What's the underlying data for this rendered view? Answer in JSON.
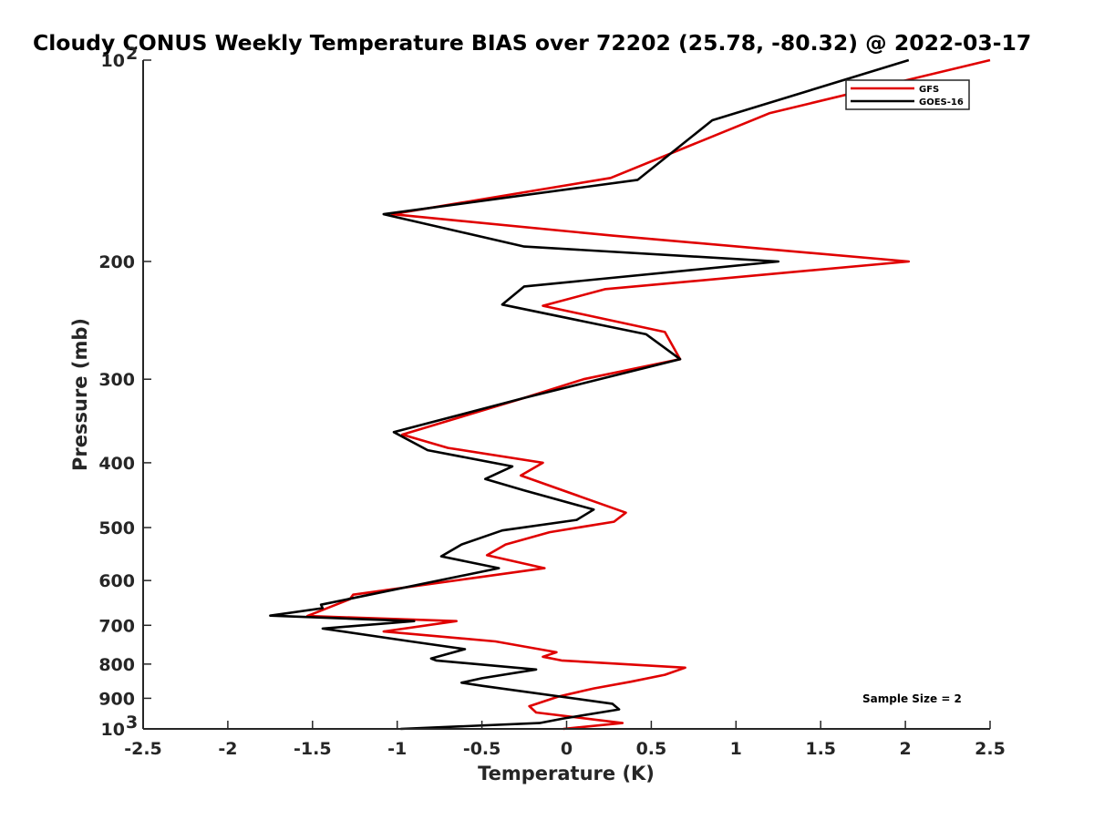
{
  "chart_data": {
    "type": "line",
    "title": "Cloudy CONUS Weekly Temperature BIAS over 72202 (25.78, -80.32) @ 2022-03-17",
    "xlabel": "Temperature (K)",
    "ylabel": "Pressure (mb)",
    "xlim": [
      -2.5,
      2.5
    ],
    "ylim": [
      100,
      1000
    ],
    "y_scale": "log",
    "y_reversed": true,
    "grid": false,
    "legend_position": "top-right",
    "x_ticks": [
      "-2.5",
      "-2",
      "-1.5",
      "-1",
      "-0.5",
      "0",
      "0.5",
      "1",
      "1.5",
      "2",
      "2.5"
    ],
    "y_ticks": [
      {
        "value": 100,
        "base": "10",
        "exp": "2"
      },
      {
        "value": 200,
        "label": "200"
      },
      {
        "value": 300,
        "label": "300"
      },
      {
        "value": 400,
        "label": "400"
      },
      {
        "value": 500,
        "label": "500"
      },
      {
        "value": 600,
        "label": "600"
      },
      {
        "value": 700,
        "label": "700"
      },
      {
        "value": 800,
        "label": "800"
      },
      {
        "value": 900,
        "label": "900"
      },
      {
        "value": 1000,
        "base": "10",
        "exp": "3"
      }
    ],
    "annotation": "Sample Size = 2",
    "series": [
      {
        "name": "GFS",
        "color": "#e00000",
        "points": [
          [
            2.5,
            100
          ],
          [
            1.2,
            120
          ],
          [
            0.26,
            150
          ],
          [
            -1.03,
            170
          ],
          [
            0.27,
            183
          ],
          [
            2.02,
            200
          ],
          [
            0.23,
            220
          ],
          [
            -0.14,
            233
          ],
          [
            0.58,
            255
          ],
          [
            0.67,
            280
          ],
          [
            0.1,
            300
          ],
          [
            -0.25,
            320
          ],
          [
            -0.97,
            363
          ],
          [
            -0.7,
            380
          ],
          [
            -0.14,
            400
          ],
          [
            -0.27,
            418
          ],
          [
            0.35,
            475
          ],
          [
            0.28,
            490
          ],
          [
            -0.1,
            508
          ],
          [
            -0.36,
            530
          ],
          [
            -0.47,
            550
          ],
          [
            -0.13,
            575
          ],
          [
            -1.26,
            630
          ],
          [
            -1.28,
            640
          ],
          [
            -1.53,
            678
          ],
          [
            -0.65,
            690
          ],
          [
            -1.08,
            715
          ],
          [
            -0.42,
            740
          ],
          [
            -0.06,
            768
          ],
          [
            -0.14,
            780
          ],
          [
            -0.03,
            790
          ],
          [
            0.7,
            810
          ],
          [
            0.58,
            830
          ],
          [
            0.38,
            850
          ],
          [
            0.16,
            870
          ],
          [
            -0.05,
            895
          ],
          [
            -0.22,
            925
          ],
          [
            -0.18,
            945
          ],
          [
            0.33,
            980
          ],
          [
            -0.02,
            1000
          ]
        ]
      },
      {
        "name": "GOES-16",
        "color": "#000000",
        "points": [
          [
            2.02,
            100
          ],
          [
            0.86,
            123
          ],
          [
            0.42,
            151
          ],
          [
            -1.08,
            170
          ],
          [
            -0.25,
            190
          ],
          [
            1.25,
            200
          ],
          [
            -0.25,
            218
          ],
          [
            -0.38,
            232
          ],
          [
            0.47,
            257
          ],
          [
            0.67,
            280
          ],
          [
            0.08,
            305
          ],
          [
            -0.25,
            320
          ],
          [
            -1.02,
            360
          ],
          [
            -0.82,
            383
          ],
          [
            -0.32,
            405
          ],
          [
            -0.48,
            423
          ],
          [
            -0.25,
            440
          ],
          [
            0.16,
            470
          ],
          [
            0.06,
            487
          ],
          [
            -0.38,
            505
          ],
          [
            -0.62,
            530
          ],
          [
            -0.74,
            552
          ],
          [
            -0.4,
            575
          ],
          [
            -1.45,
            652
          ],
          [
            -1.44,
            660
          ],
          [
            -1.75,
            677
          ],
          [
            -0.9,
            690
          ],
          [
            -1.44,
            708
          ],
          [
            -0.92,
            740
          ],
          [
            -0.6,
            760
          ],
          [
            -0.8,
            785
          ],
          [
            -0.77,
            790
          ],
          [
            -0.18,
            815
          ],
          [
            -0.5,
            840
          ],
          [
            -0.62,
            853
          ],
          [
            -0.5,
            862
          ],
          [
            0.27,
            917
          ],
          [
            0.31,
            935
          ],
          [
            -0.02,
            965
          ],
          [
            -0.16,
            980
          ],
          [
            -0.98,
            1000
          ]
        ]
      }
    ]
  }
}
